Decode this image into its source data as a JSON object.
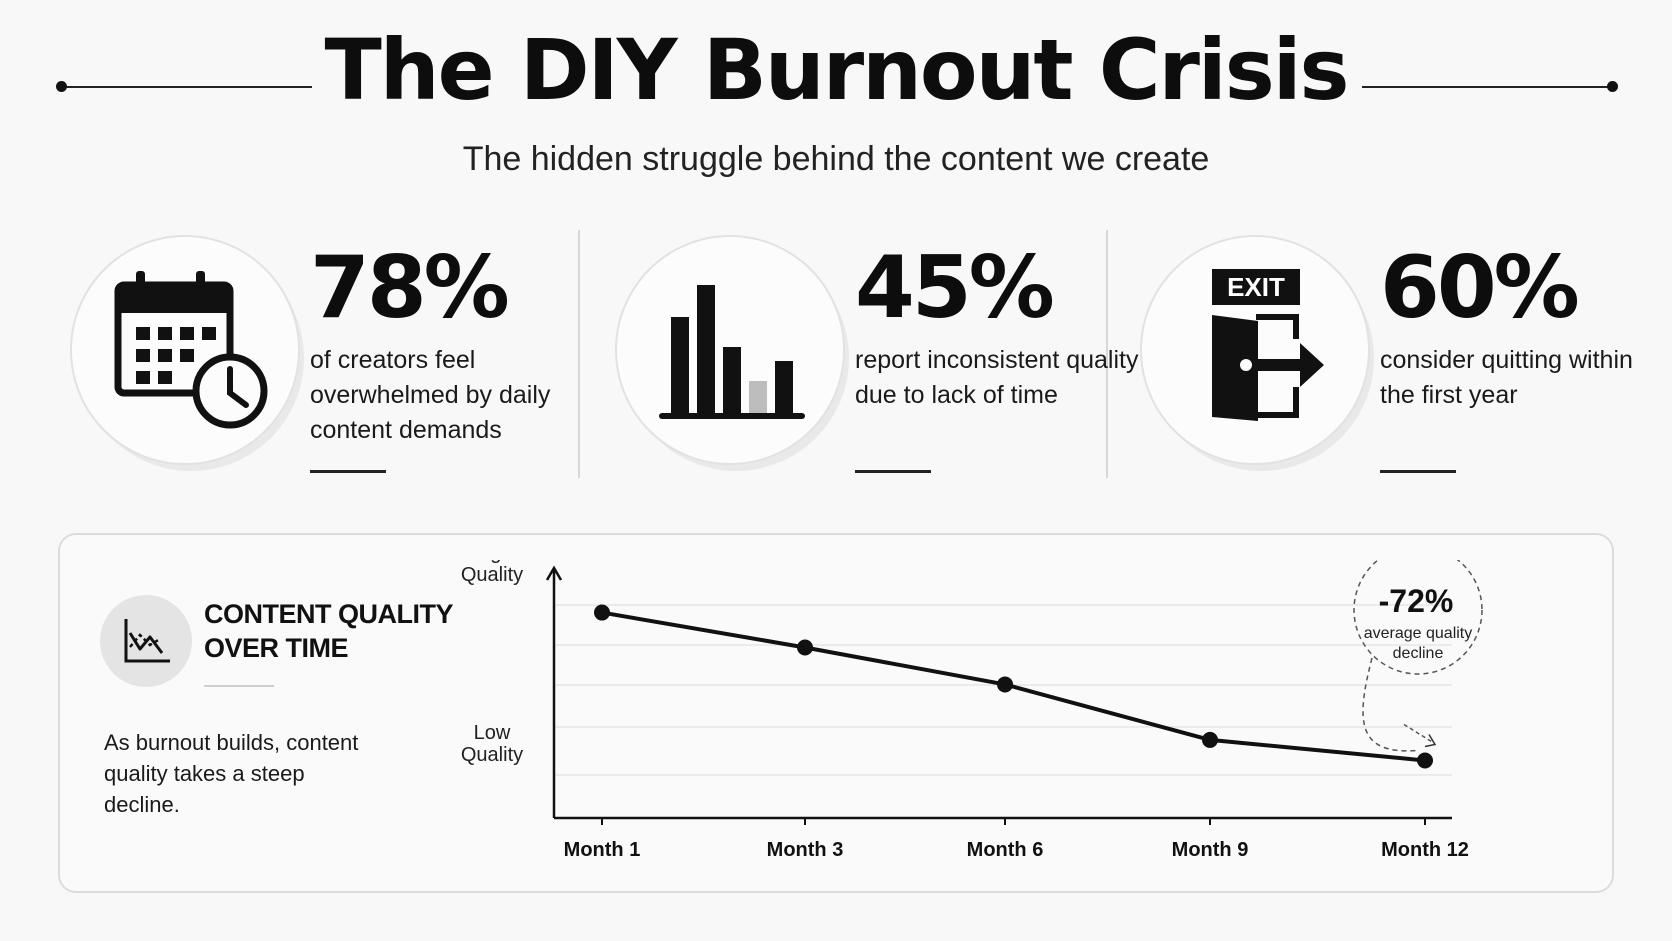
{
  "header": {
    "title": "The DIY Burnout Crisis",
    "subtitle": "The hidden struggle behind the content we create"
  },
  "stats": [
    {
      "value": "78%",
      "description": "of creators feel overwhelmed by daily content demands",
      "icon": "calendar-clock-icon"
    },
    {
      "value": "45%",
      "description": "report inconsistent quality due to lack of time",
      "icon": "bar-chart-icon"
    },
    {
      "value": "60%",
      "description": "consider quitting within the first year",
      "icon": "exit-door-icon",
      "icon_label": "EXIT"
    }
  ],
  "panel": {
    "heading_line1": "CONTENT QUALITY",
    "heading_line2": "OVER TIME",
    "caption": "As burnout builds, content quality takes a steep decline.",
    "icon": "trend-down-icon"
  },
  "chart_data": {
    "type": "line",
    "x": [
      "Month 1",
      "Month 3",
      "Month 6",
      "Month 9",
      "Month 12"
    ],
    "series": [
      {
        "values": [
          100,
          83,
          65,
          38,
          28
        ]
      }
    ],
    "ylabel_top": "High Quality",
    "ylabel_bottom": "Low Quality",
    "ylim": [
      0,
      110
    ],
    "grid": true,
    "callout": {
      "value": "-72%",
      "label_line1": "average quality",
      "label_line2": "decline",
      "points_to": "Month 12"
    }
  },
  "colors": {
    "ink": "#111111",
    "background": "#f8f8f8",
    "gridline": "#e6e6e6"
  }
}
